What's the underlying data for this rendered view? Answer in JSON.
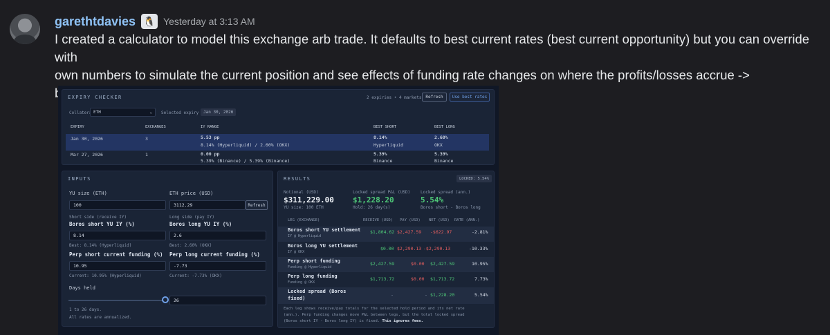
{
  "message": {
    "username": "garethtdavies",
    "badge_icon": "penguin-badge-icon",
    "timestamp": "Yesterday at 3:13 AM",
    "line1": "I created a calculator to model this exchange arb trade. It defaults to best current rates (best current opportunity) but you can override with",
    "line2": "own numbers to simulate the current position and see effects of funding rate changes on where the profits/losses accrue ->",
    "line3": "boros.garethtdavies.com/exchange-arb"
  },
  "expiry": {
    "title": "EXPIRY CHECKER",
    "summary": "2 expiries • 4 markets",
    "refresh": "Refresh",
    "use_best": "Use best rates",
    "collateral_label": "Collateral",
    "collateral_value": "ETH",
    "selected_label": "Selected expiry",
    "selected_value": "Jan 30, 2026",
    "headers": [
      "EXPIRY",
      "EXCHANGES",
      "IY RANGE",
      "BEST SHORT",
      "BEST LONG"
    ],
    "rows": [
      {
        "expiry": "Jan 30, 2026",
        "exchanges": "3",
        "range": "5.53 pp",
        "range_sub": "8.14% (Hyperliquid) / 2.60% (OKX)",
        "short": "8.14%",
        "short_sub": "Hyperliquid",
        "long": "2.60%",
        "long_sub": "OKX"
      },
      {
        "expiry": "Mar 27, 2026",
        "exchanges": "1",
        "range": "0.00 pp",
        "range_sub": "5.39% (Binance) / 5.39% (Binance)",
        "short": "5.39%",
        "short_sub": "Binance",
        "long": "5.39%",
        "long_sub": "Binance"
      }
    ]
  },
  "inputs": {
    "title": "INPUTS",
    "yu_size_label": "YU size (ETH)",
    "yu_size_value": "100",
    "eth_price_label": "ETH price (USD)",
    "eth_price_value": "3112.29",
    "refresh": "Refresh",
    "short_side": "Short side (receive IY)",
    "short_iy_label": "Boros short YU IY (%)",
    "short_iy_value": "8.14",
    "short_best": "Best: 8.14% (Hyperliquid)",
    "long_side": "Long side (pay IY)",
    "long_iy_label": "Boros long YU IY (%)",
    "long_iy_value": "2.6",
    "long_best": "Best: 2.60% (OKX)",
    "perp_short_label": "Perp short current funding (%)",
    "perp_short_value": "10.95",
    "perp_short_current": "Current: 10.95% (Hyperliquid)",
    "perp_long_label": "Perp long current funding (%)",
    "perp_long_value": "-7.73",
    "perp_long_current": "Current: -7.73% (OKX)",
    "days_label": "Days held",
    "days_value": "26",
    "days_fraction": 1,
    "days_range": "1 to 26 days.",
    "annualized_note": "All rates are annualized."
  },
  "results": {
    "title": "RESULTS",
    "locked_badge": "LOCKED: 5.54%",
    "notional_label": "Notional (USD)",
    "notional_value": "$311,229.00",
    "notional_sub": "YU size: 100 ETH",
    "pnl_label": "Locked spread P&L (USD)",
    "pnl_value": "$1,228.20",
    "pnl_sub": "Hold: 26 day(s)",
    "ann_label": "Locked spread (ann.)",
    "ann_value": "5.54%",
    "ann_sub": "Boros short - Boros long",
    "headers": [
      "LEG (EXCHANGE)",
      "RECEIVE (USD)",
      "PAY (USD)",
      "NET (USD)",
      "RATE (ANN.)"
    ],
    "rows": [
      {
        "leg": "Boros short YU settlement",
        "sub": "IY @ Hyperliquid",
        "receive": "$1,804.62",
        "pay": "$2,427.59",
        "net": "-$622.97",
        "rate": "-2.81%"
      },
      {
        "leg": "Boros long YU settlement",
        "sub": "IY @ OKX",
        "receive": "$0.00",
        "pay": "$2,290.13",
        "net": "-$2,290.13",
        "rate": "-10.33%"
      },
      {
        "leg": "Perp short funding",
        "sub": "Funding @ Hyperliquid",
        "receive": "$2,427.59",
        "pay": "$0.00",
        "net": "$2,427.59",
        "rate": "10.95%"
      },
      {
        "leg": "Perp long funding",
        "sub": "Funding @ OKX",
        "receive": "$1,713.72",
        "pay": "$0.00",
        "net": "$1,713.72",
        "rate": "7.73%"
      },
      {
        "leg": "Locked spread (Boros",
        "leg2": "fixed)",
        "receive": "-",
        "pay": "-",
        "net": "$1,228.20",
        "rate": "5.54%"
      }
    ],
    "footnote1": "Each leg shows receive/pay totals for the selected hold period and its net rate",
    "footnote2": "(ann.). Perp funding changes move P&L between legs, but the total locked spread",
    "footnote3": "(Boros short IY - Boros long IY) is fixed.",
    "footnote_bold": "This ignores fees."
  }
}
